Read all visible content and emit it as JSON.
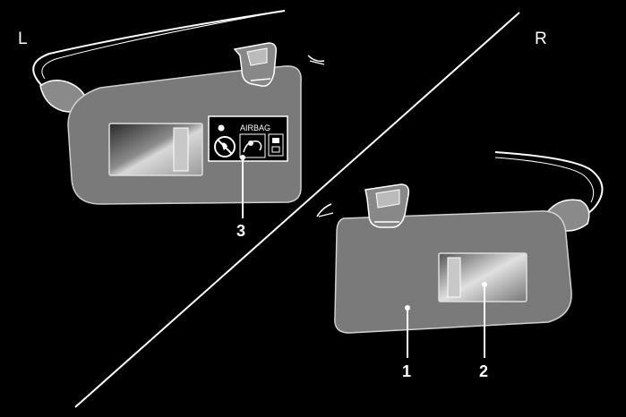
{
  "diagram": {
    "side_left": "L",
    "side_right": "R",
    "warning_label_text": "AIRBAG",
    "callouts": [
      "1",
      "2",
      "3"
    ]
  },
  "colors": {
    "background": "#000000",
    "visor_fill": "#7a7a7a",
    "line": "#ffffff"
  }
}
